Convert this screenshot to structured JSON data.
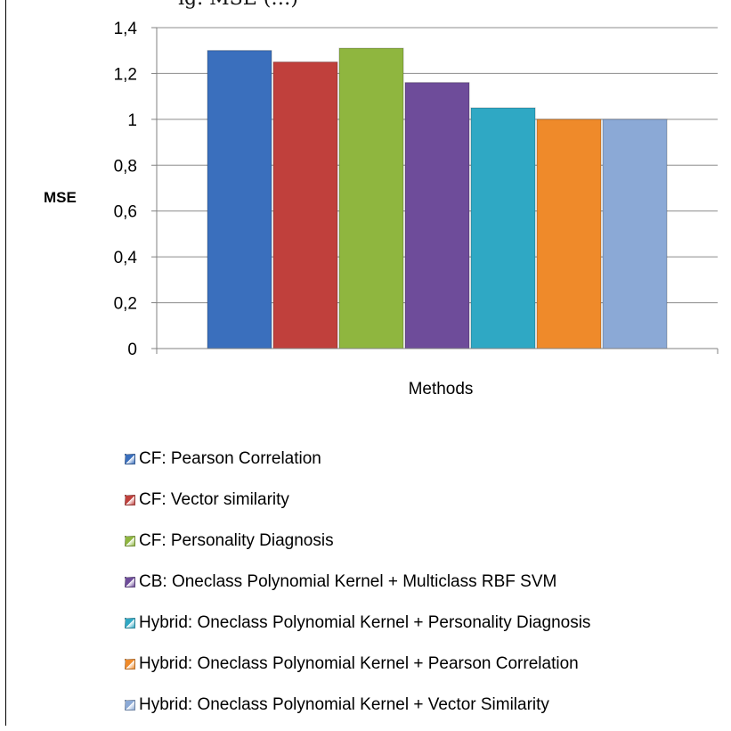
{
  "header": {
    "title_fragment": "ig. MSE (…)"
  },
  "chart_data": {
    "type": "bar",
    "xlabel": "Methods",
    "ylabel": "MSE",
    "ylim": [
      0,
      1.4
    ],
    "yticks": [
      "0",
      "0,2",
      "0,4",
      "0,6",
      "0,8",
      "1",
      "1,2",
      "1,4"
    ],
    "grid": true,
    "legend_position": "bottom",
    "series": [
      {
        "name": "CF: Pearson Correlation",
        "value": 1.3,
        "color": "#3a6fbd"
      },
      {
        "name": "CF: Vector similarity",
        "value": 1.25,
        "color": "#c0403c"
      },
      {
        "name": "CF: Personality Diagnosis",
        "value": 1.31,
        "color": "#8fb63f"
      },
      {
        "name": "CB: Oneclass Polynomial Kernel + Multiclass RBF SVM",
        "value": 1.16,
        "color": "#6e4c9a"
      },
      {
        "name": "Hybrid: Oneclass Polynomial Kernel + Personality Diagnosis",
        "value": 1.05,
        "color": "#2fa8c4"
      },
      {
        "name": "Hybrid: Oneclass Polynomial Kernel + Pearson Correlation",
        "value": 1.0,
        "color": "#ef8a2a"
      },
      {
        "name": "Hybrid: Oneclass Polynomial Kernel + Vector Similarity",
        "value": 1.0,
        "color": "#8ba9d6"
      }
    ]
  }
}
